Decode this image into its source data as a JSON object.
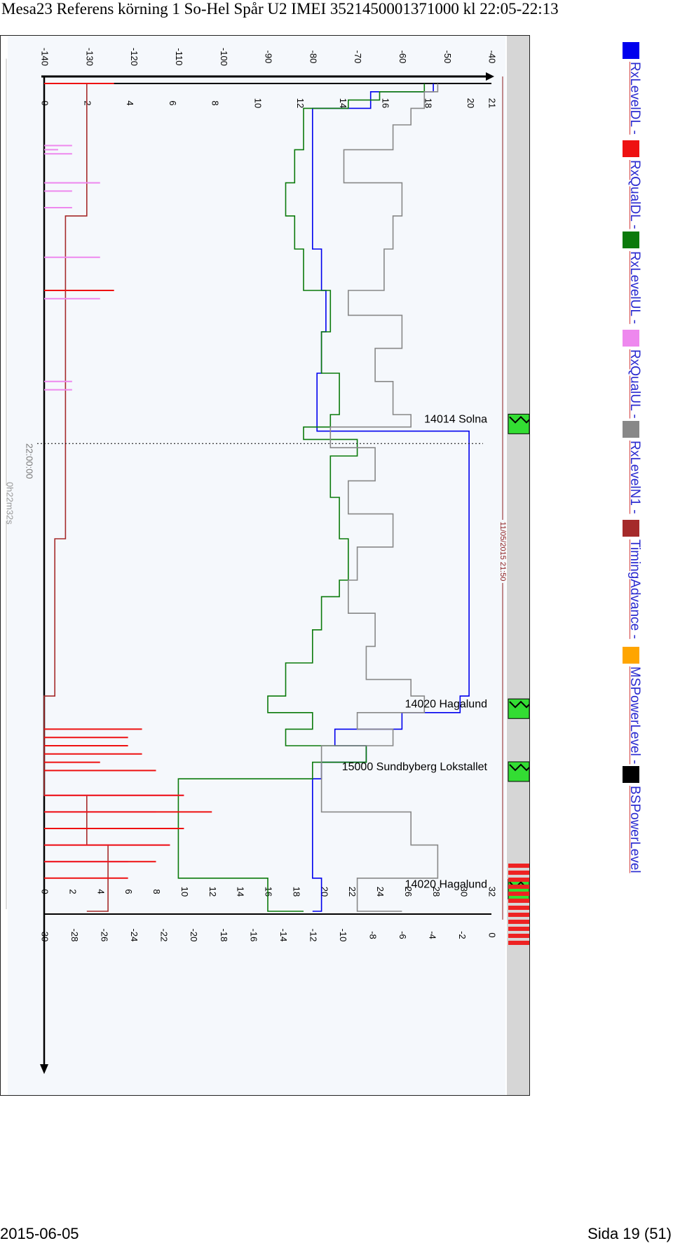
{
  "page": {
    "title": "Mesa23 Referens körning 1 So-Hel Spår U2 IMEI 3521450001371000 kl 22:05-22:13",
    "footer_date": "2015-06-05",
    "footer_page": "Sida 19 (51)"
  },
  "legend": [
    {
      "label": "RxLevelDL -",
      "color": "#0000ee"
    },
    {
      "label": "RxQualDL -",
      "color": "#ee1111"
    },
    {
      "label": "RxLevelUL -",
      "color": "#0b7a0b"
    },
    {
      "label": "RxQualUL -",
      "color": "#ee88ee"
    },
    {
      "label": "RxLevelN1 -",
      "color": "#888888"
    },
    {
      "label": "TimingAdvance -",
      "color": "#a52a2a"
    },
    {
      "label": "MSPowerLevel -",
      "color": "#ffa500"
    },
    {
      "label": "BSPowerLevel",
      "color": "#000000"
    }
  ],
  "chart_data": {
    "type": "line",
    "orientation": "rotated 90° clockwise (time runs top to bottom)",
    "axes": {
      "level": {
        "ticks": [
          "-140",
          "-130",
          "-120",
          "-110",
          "-100",
          "-90",
          "-80",
          "-70",
          "-60",
          "-50",
          "-40"
        ],
        "range": [
          -140,
          -40
        ]
      },
      "timing_advance": {
        "ticks": [
          "0",
          "2",
          "4",
          "6",
          "8",
          "10",
          "12",
          "14",
          "16",
          "18",
          "20",
          "21"
        ],
        "range": [
          0,
          21
        ]
      },
      "quality": {
        "ticks": [
          "0",
          "2",
          "4",
          "6",
          "8",
          "10",
          "12",
          "14",
          "16",
          "18",
          "20",
          "22",
          "24",
          "26",
          "28",
          "30",
          "32"
        ],
        "range": [
          0,
          32
        ]
      },
      "power": {
        "ticks": [
          "-30",
          "-28",
          "-26",
          "-24",
          "-22",
          "-20",
          "-18",
          "-16",
          "-14",
          "-12",
          "-10",
          "-8",
          "-6",
          "-4",
          "-2",
          "0"
        ],
        "range": [
          -30,
          0
        ]
      }
    },
    "time_marker": "22:00:00",
    "duration_label": "0h22m32s",
    "date_label": "11/05/2015 21:50",
    "annotations": [
      {
        "label": "14014 Solna",
        "t": 0.413
      },
      {
        "label": "14020 Hagalund",
        "t": 0.757
      },
      {
        "label": "15000 Sundbyberg Lokstallet",
        "t": 0.833
      },
      {
        "label": "14020 Hagalund",
        "t": 0.975
      }
    ],
    "series": [
      {
        "name": "RxLevelDL",
        "color": "#0000ee",
        "points": [
          [
            0.0,
            -53
          ],
          [
            0.01,
            -67
          ],
          [
            0.03,
            -80
          ],
          [
            0.05,
            -80
          ],
          [
            0.1,
            -80
          ],
          [
            0.15,
            -80
          ],
          [
            0.2,
            -78
          ],
          [
            0.25,
            -77
          ],
          [
            0.3,
            -78
          ],
          [
            0.35,
            -79
          ],
          [
            0.4,
            -79
          ],
          [
            0.415,
            -79
          ],
          [
            0.42,
            -45
          ],
          [
            0.5,
            -45
          ],
          [
            0.6,
            -45
          ],
          [
            0.7,
            -45
          ],
          [
            0.74,
            -47
          ],
          [
            0.76,
            -60
          ],
          [
            0.78,
            -75
          ],
          [
            0.8,
            -68
          ],
          [
            0.82,
            -78
          ],
          [
            0.84,
            -80
          ],
          [
            0.88,
            -80
          ],
          [
            0.92,
            -80
          ],
          [
            0.96,
            -78
          ],
          [
            1.0,
            -80
          ]
        ]
      },
      {
        "name": "RxLevelUL",
        "color": "#0b7a0b",
        "points": [
          [
            0.0,
            -55
          ],
          [
            0.01,
            -65
          ],
          [
            0.02,
            -72
          ],
          [
            0.03,
            -82
          ],
          [
            0.05,
            -82
          ],
          [
            0.08,
            -84
          ],
          [
            0.12,
            -86
          ],
          [
            0.16,
            -84
          ],
          [
            0.2,
            -82
          ],
          [
            0.25,
            -76
          ],
          [
            0.3,
            -78
          ],
          [
            0.35,
            -74
          ],
          [
            0.4,
            -76
          ],
          [
            0.415,
            -82
          ],
          [
            0.43,
            -70
          ],
          [
            0.45,
            -76
          ],
          [
            0.5,
            -74
          ],
          [
            0.55,
            -72
          ],
          [
            0.6,
            -74
          ],
          [
            0.62,
            -78
          ],
          [
            0.66,
            -80
          ],
          [
            0.7,
            -86
          ],
          [
            0.74,
            -90
          ],
          [
            0.76,
            -80
          ],
          [
            0.78,
            -86
          ],
          [
            0.8,
            -68
          ],
          [
            0.82,
            -80
          ],
          [
            0.84,
            -110
          ],
          [
            0.88,
            -110
          ],
          [
            0.92,
            -110
          ],
          [
            0.96,
            -90
          ],
          [
            1.0,
            -82
          ]
        ]
      },
      {
        "name": "RxLevelN1",
        "color": "#888888",
        "points": [
          [
            0.0,
            -52
          ],
          [
            0.01,
            -55
          ],
          [
            0.03,
            -58
          ],
          [
            0.05,
            -62
          ],
          [
            0.08,
            -73
          ],
          [
            0.12,
            -60
          ],
          [
            0.16,
            -62
          ],
          [
            0.2,
            -64
          ],
          [
            0.25,
            -72
          ],
          [
            0.28,
            -60
          ],
          [
            0.32,
            -66
          ],
          [
            0.36,
            -62
          ],
          [
            0.4,
            -58
          ],
          [
            0.415,
            -76
          ],
          [
            0.44,
            -66
          ],
          [
            0.48,
            -72
          ],
          [
            0.52,
            -62
          ],
          [
            0.56,
            -70
          ],
          [
            0.6,
            -72
          ],
          [
            0.64,
            -66
          ],
          [
            0.68,
            -68
          ],
          [
            0.72,
            -58
          ],
          [
            0.74,
            -55
          ],
          [
            0.76,
            -70
          ],
          [
            0.78,
            -62
          ],
          [
            0.8,
            -78
          ],
          [
            0.84,
            -78
          ],
          [
            0.88,
            -58
          ],
          [
            0.92,
            -52
          ],
          [
            0.96,
            -70
          ],
          [
            1.0,
            -60
          ]
        ]
      },
      {
        "name": "TimingAdvance",
        "color": "#a52a2a",
        "points": [
          [
            0.0,
            2
          ],
          [
            0.15,
            2
          ],
          [
            0.16,
            1
          ],
          [
            0.3,
            1
          ],
          [
            0.4,
            1
          ],
          [
            0.5,
            1
          ],
          [
            0.55,
            0.5
          ],
          [
            0.72,
            0.5
          ],
          [
            0.74,
            0
          ],
          [
            0.8,
            0
          ],
          [
            0.86,
            2
          ],
          [
            0.92,
            3
          ],
          [
            0.95,
            3
          ],
          [
            1.0,
            2
          ]
        ]
      },
      {
        "name": "RxQualUL",
        "color": "#ee88ee",
        "points": [
          [
            0.075,
            2
          ],
          [
            0.08,
            1
          ],
          [
            0.085,
            2
          ],
          [
            0.12,
            4
          ],
          [
            0.13,
            2
          ],
          [
            0.15,
            2
          ],
          [
            0.21,
            4
          ],
          [
            0.26,
            4
          ],
          [
            0.36,
            2
          ],
          [
            0.37,
            2
          ],
          [
            0.86,
            10
          ],
          [
            0.88,
            8
          ],
          [
            0.9,
            10
          ],
          [
            0.92,
            9
          ],
          [
            0.94,
            6
          ]
        ]
      },
      {
        "name": "RxQualDL",
        "color": "#ee1111",
        "points": [
          [
            0.0,
            5
          ],
          [
            0.25,
            5
          ],
          [
            0.78,
            7
          ],
          [
            0.79,
            6
          ],
          [
            0.8,
            6
          ],
          [
            0.81,
            7
          ],
          [
            0.82,
            4
          ],
          [
            0.83,
            8
          ],
          [
            0.86,
            10
          ],
          [
            0.88,
            12
          ],
          [
            0.9,
            10
          ],
          [
            0.92,
            9
          ],
          [
            0.94,
            8
          ],
          [
            0.96,
            6
          ]
        ]
      }
    ],
    "grid": false,
    "legend_position": "right (rotated)"
  }
}
